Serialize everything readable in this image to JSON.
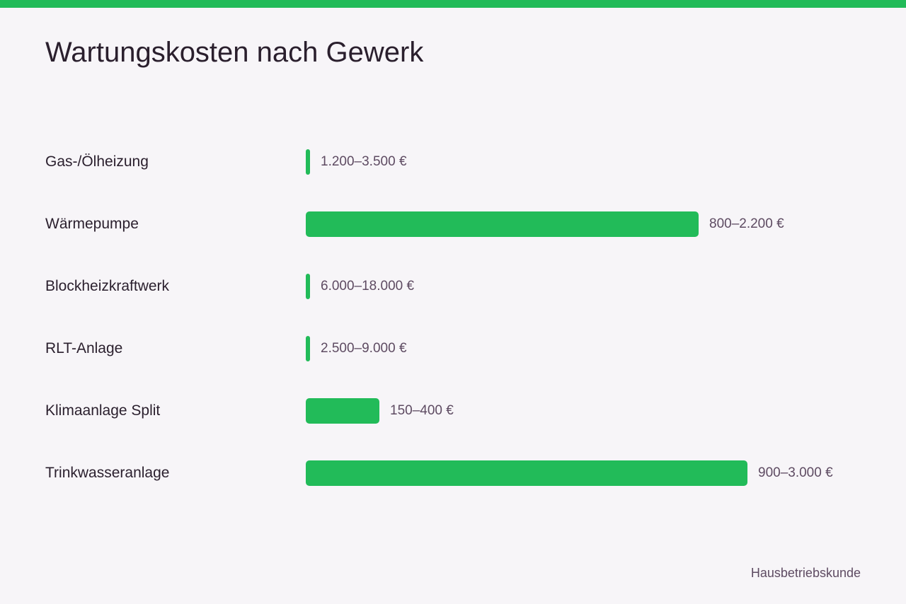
{
  "accent_color": "#22bb59",
  "title": "Wartungskosten nach Gewerk",
  "source": "Hausbetriebskunde",
  "chart_data": {
    "type": "bar",
    "orientation": "horizontal",
    "title": "Wartungskosten nach Gewerk",
    "categories": [
      "Gas-/Ölheizung",
      "Wärmepumpe",
      "Blockheizkraftwerk",
      "RLT-Anlage",
      "Klimaanlage Split",
      "Trinkwasseranlage"
    ],
    "values": [
      1,
      160,
      1,
      1,
      30,
      180
    ],
    "value_labels": [
      "1.200–3.500 €",
      "800–2.200 €",
      "6.000–18.000 €",
      "2.500–9.000 €",
      "150–400 €",
      "900–3.000 €"
    ],
    "xlim": [
      0,
      180
    ],
    "grid": false,
    "bar_color": "#22bb59"
  }
}
